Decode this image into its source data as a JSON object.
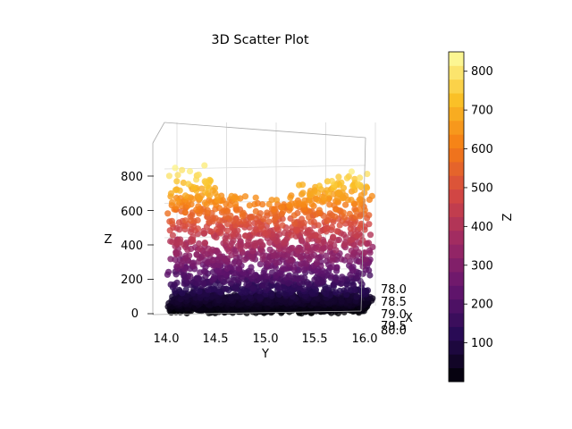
{
  "chart_data": {
    "type": "scatter",
    "title": "3D Scatter Plot",
    "projection": "3d",
    "xlabel": "X",
    "ylabel": "Y",
    "zlabel": "Z",
    "xlim": [
      77.5,
      80.3
    ],
    "ylim": [
      13.85,
      16.05
    ],
    "zlim": [
      0,
      880
    ],
    "xticks": [
      "78.0",
      "78.5",
      "79.0",
      "79.5",
      "80.0"
    ],
    "yticks": [
      "14.0",
      "14.5",
      "15.0",
      "15.5",
      "16.0"
    ],
    "zticks": [
      "0",
      "200",
      "400",
      "600",
      "800"
    ],
    "colormap": "inferno",
    "grid": true,
    "colorbar": {
      "label": "Z",
      "range": [
        0,
        850
      ],
      "ticks": [
        "100",
        "200",
        "300",
        "400",
        "500",
        "600",
        "700",
        "800"
      ],
      "levels": 24
    },
    "profile": [
      {
        "y": 14.0,
        "z_max": 870
      },
      {
        "y": 14.25,
        "z_max": 830
      },
      {
        "y": 14.5,
        "z_max": 780
      },
      {
        "y": 14.75,
        "z_max": 650
      },
      {
        "y": 15.0,
        "z_max": 640
      },
      {
        "y": 15.25,
        "z_max": 780
      },
      {
        "y": 15.5,
        "z_max": 760
      },
      {
        "y": 15.75,
        "z_max": 850
      },
      {
        "y": 16.0,
        "z_max": 860
      }
    ]
  }
}
